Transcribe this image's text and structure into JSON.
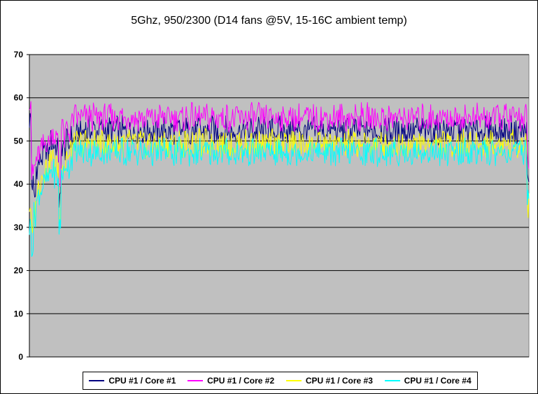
{
  "chart_data": {
    "type": "line",
    "title": "5Ghz, 950/2300 (D14 fans @5V, 15-16C ambient temp)",
    "xlabel": "",
    "ylabel": "",
    "ylim": [
      0,
      70
    ],
    "yticks": [
      0,
      10,
      20,
      30,
      40,
      50,
      60,
      70
    ],
    "grid": true,
    "plot_background": "#C0C0C0",
    "legend_position": "bottom",
    "series": [
      {
        "name": "CPU #1 / Core #1",
        "color": "#000080",
        "values": [
          55,
          40,
          37,
          44,
          45,
          46,
          47,
          48,
          47,
          50,
          49,
          49,
          48,
          36,
          49,
          48,
          50,
          49,
          51,
          50,
          51,
          52,
          52,
          52,
          53,
          52,
          53,
          52,
          53,
          52,
          53,
          53,
          52,
          53,
          52,
          53,
          52,
          52,
          53,
          52,
          53,
          52,
          52,
          53,
          52,
          53,
          52,
          52,
          53,
          52,
          52,
          52,
          53,
          52,
          52,
          52,
          52,
          53,
          52,
          53,
          52,
          52,
          53,
          52,
          52,
          53,
          52,
          52,
          53,
          52,
          52,
          53,
          52,
          52,
          53,
          52,
          52,
          53,
          52,
          52,
          53,
          52,
          52,
          53,
          52,
          52,
          53,
          52,
          52,
          52,
          52,
          53,
          52,
          52,
          53,
          52,
          52,
          53,
          52,
          52,
          53,
          52,
          52,
          53,
          52,
          52,
          53,
          52,
          52,
          53,
          52,
          52,
          53,
          52,
          52,
          53,
          52,
          52,
          53,
          52,
          52,
          53,
          52,
          52,
          53,
          52,
          52,
          53,
          52,
          52,
          53,
          52,
          52,
          53,
          52,
          52,
          53,
          52,
          52,
          53,
          52,
          52,
          53,
          52,
          52,
          53,
          52,
          52,
          53,
          52,
          52,
          53,
          52,
          52,
          53,
          52,
          52,
          53,
          52,
          52,
          53,
          52,
          52,
          53,
          52,
          52,
          53,
          52,
          52,
          53,
          52,
          52,
          53,
          52,
          52,
          53,
          52,
          52,
          53,
          52,
          52,
          53,
          52,
          52,
          53,
          52,
          52,
          53,
          52,
          52,
          53,
          52,
          52,
          53,
          52,
          52,
          53,
          52,
          52,
          53,
          52,
          52,
          53,
          52,
          52,
          53,
          52,
          52,
          53,
          52,
          52,
          53,
          52,
          52,
          53,
          52,
          52,
          53,
          40
        ]
      },
      {
        "name": "CPU #1 / Core #2",
        "color": "#FF00FF",
        "values": [
          60,
          42,
          44,
          46,
          47,
          48,
          49,
          50,
          49,
          51,
          52,
          51,
          50,
          40,
          55,
          50,
          53,
          52,
          54,
          55,
          56,
          55,
          56,
          55,
          56,
          55,
          56,
          55,
          56,
          55,
          55,
          56,
          55,
          56,
          55,
          56,
          55,
          55,
          56,
          55,
          56,
          55,
          55,
          56,
          55,
          56,
          55,
          55,
          56,
          55,
          55,
          55,
          56,
          55,
          55,
          55,
          55,
          56,
          55,
          56,
          55,
          55,
          56,
          55,
          55,
          56,
          55,
          55,
          56,
          55,
          55,
          56,
          55,
          55,
          56,
          55,
          55,
          56,
          55,
          55,
          56,
          55,
          55,
          56,
          55,
          55,
          56,
          55,
          55,
          55,
          55,
          56,
          55,
          55,
          56,
          55,
          55,
          56,
          55,
          55,
          56,
          55,
          55,
          56,
          55,
          55,
          56,
          55,
          55,
          56,
          55,
          55,
          56,
          55,
          55,
          56,
          55,
          55,
          56,
          55,
          55,
          56,
          55,
          55,
          56,
          55,
          55,
          56,
          55,
          55,
          56,
          55,
          55,
          56,
          55,
          55,
          56,
          55,
          55,
          56,
          55,
          55,
          56,
          55,
          55,
          56,
          55,
          55,
          56,
          55,
          55,
          56,
          55,
          55,
          56,
          55,
          55,
          56,
          55,
          55,
          56,
          55,
          55,
          56,
          55,
          55,
          56,
          55,
          55,
          56,
          55,
          55,
          56,
          55,
          55,
          56,
          55,
          55,
          56,
          55,
          55,
          56,
          55,
          55,
          56,
          55,
          55,
          56,
          55,
          55,
          56,
          55,
          55,
          56,
          55,
          55,
          56,
          55,
          55,
          56,
          55,
          55,
          56,
          55,
          55,
          56,
          55,
          55,
          56,
          55,
          55,
          56,
          55,
          55,
          56,
          55,
          55,
          56,
          45
        ]
      },
      {
        "name": "CPU #1 / Core #3",
        "color": "#FFFF00",
        "values": [
          35,
          28,
          34,
          38,
          40,
          42,
          43,
          44,
          44,
          46,
          46,
          45,
          44,
          32,
          46,
          44,
          47,
          46,
          48,
          49,
          50,
          49,
          50,
          49,
          50,
          49,
          50,
          49,
          50,
          49,
          49,
          50,
          49,
          50,
          49,
          50,
          49,
          49,
          50,
          49,
          50,
          49,
          49,
          50,
          49,
          50,
          49,
          49,
          50,
          49,
          49,
          49,
          50,
          49,
          49,
          49,
          49,
          50,
          49,
          50,
          49,
          49,
          50,
          49,
          49,
          50,
          49,
          49,
          50,
          49,
          49,
          50,
          49,
          49,
          50,
          49,
          49,
          50,
          49,
          49,
          50,
          49,
          49,
          50,
          49,
          49,
          50,
          49,
          49,
          49,
          49,
          50,
          49,
          49,
          50,
          49,
          49,
          50,
          49,
          49,
          50,
          49,
          49,
          50,
          49,
          49,
          50,
          49,
          49,
          50,
          49,
          49,
          50,
          49,
          49,
          50,
          49,
          49,
          50,
          49,
          49,
          50,
          49,
          49,
          50,
          49,
          49,
          50,
          49,
          49,
          50,
          49,
          49,
          50,
          49,
          49,
          50,
          49,
          49,
          50,
          49,
          49,
          50,
          49,
          49,
          50,
          49,
          49,
          50,
          49,
          49,
          50,
          49,
          49,
          50,
          49,
          49,
          50,
          49,
          49,
          50,
          49,
          49,
          50,
          49,
          49,
          50,
          49,
          49,
          50,
          49,
          49,
          50,
          49,
          49,
          50,
          49,
          49,
          50,
          49,
          49,
          50,
          49,
          49,
          50,
          49,
          49,
          50,
          49,
          49,
          50,
          49,
          49,
          50,
          49,
          49,
          50,
          49,
          49,
          50,
          49,
          49,
          50,
          49,
          49,
          50,
          49,
          49,
          50,
          49,
          49,
          50,
          49,
          49,
          50,
          49,
          49,
          50,
          35
        ]
      },
      {
        "name": "CPU #1 / Core #4",
        "color": "#00FFFF",
        "values": [
          30,
          26,
          33,
          36,
          38,
          39,
          40,
          41,
          41,
          43,
          43,
          42,
          41,
          30,
          43,
          42,
          45,
          44,
          46,
          47,
          48,
          47,
          48,
          47,
          48,
          47,
          48,
          47,
          48,
          47,
          47,
          48,
          47,
          48,
          47,
          48,
          47,
          47,
          48,
          47,
          48,
          47,
          47,
          48,
          47,
          48,
          47,
          47,
          48,
          47,
          47,
          47,
          48,
          47,
          47,
          47,
          47,
          48,
          47,
          48,
          47,
          47,
          48,
          47,
          47,
          48,
          47,
          47,
          48,
          47,
          47,
          48,
          47,
          47,
          48,
          47,
          47,
          48,
          47,
          47,
          48,
          47,
          47,
          48,
          47,
          47,
          48,
          47,
          47,
          47,
          47,
          48,
          47,
          47,
          48,
          47,
          47,
          48,
          47,
          47,
          48,
          47,
          47,
          48,
          47,
          47,
          48,
          47,
          47,
          48,
          47,
          47,
          48,
          47,
          47,
          48,
          47,
          47,
          48,
          47,
          47,
          48,
          47,
          47,
          48,
          47,
          47,
          48,
          47,
          47,
          48,
          47,
          47,
          48,
          47,
          47,
          48,
          47,
          47,
          48,
          47,
          47,
          48,
          47,
          47,
          48,
          47,
          47,
          48,
          47,
          47,
          48,
          47,
          47,
          48,
          47,
          47,
          48,
          47,
          47,
          48,
          47,
          47,
          48,
          47,
          47,
          48,
          47,
          47,
          48,
          47,
          47,
          48,
          47,
          47,
          48,
          47,
          47,
          48,
          47,
          47,
          48,
          47,
          47,
          48,
          47,
          47,
          48,
          47,
          47,
          48,
          47,
          47,
          48,
          47,
          47,
          48,
          47,
          47,
          48,
          47,
          47,
          48,
          47,
          47,
          48,
          47,
          47,
          48,
          47,
          47,
          48,
          47,
          47,
          48,
          47,
          47,
          48,
          37
        ]
      }
    ]
  }
}
